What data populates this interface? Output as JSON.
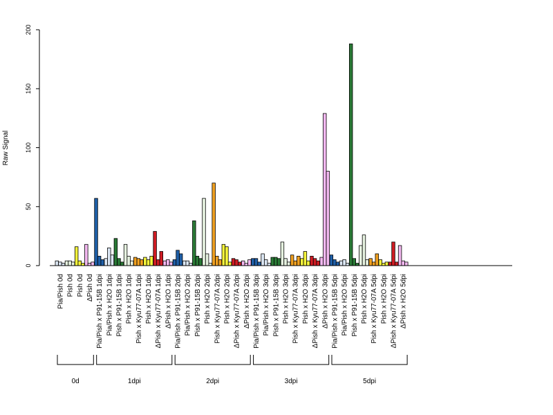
{
  "chart_data": {
    "type": "bar",
    "ylabel": "Raw Signal",
    "ylim": [
      0,
      200
    ],
    "yticks": [
      0,
      50,
      100,
      150,
      200
    ],
    "bars_per_group": 3,
    "categories": [
      {
        "label": "Pia/Pish 0d",
        "color": "#dbe6f3",
        "values": [
          4,
          3,
          2
        ]
      },
      {
        "label": "Pish 0d",
        "color": "#e6f2e0",
        "values": [
          4,
          4,
          3
        ]
      },
      {
        "label": "Pish 0d",
        "color": "#f5f53c",
        "values": [
          16,
          4,
          2
        ]
      },
      {
        "label": "ΔPish 0d",
        "color": "#f3b8f0",
        "values": [
          18,
          2,
          3
        ]
      },
      {
        "label": "Pia/Pish x P91-15B 1dpi",
        "color": "#1f5fa8",
        "values": [
          57,
          8,
          5
        ]
      },
      {
        "label": "Pia/Pish x H2O 1dpi",
        "color": "#dbe6f3",
        "values": [
          6,
          15,
          9
        ]
      },
      {
        "label": "Pish x P91-15B 1dpi",
        "color": "#2a7a36",
        "values": [
          23,
          6,
          3
        ]
      },
      {
        "label": "Pish x H2O 1dpi",
        "color": "#e6f2e0",
        "values": [
          18,
          8,
          4
        ]
      },
      {
        "label": "Pish x Kyu77-07A 1dpi",
        "color": "#f0a020",
        "values": [
          7,
          6,
          5
        ]
      },
      {
        "label": "Pish x H2O 1dpi",
        "color": "#f5f53c",
        "values": [
          7,
          5,
          8
        ]
      },
      {
        "label": "ΔPish x Kyu77-07A 1dpi",
        "color": "#d01c24",
        "values": [
          29,
          5,
          12
        ]
      },
      {
        "label": "ΔPish x H2O 1dpi",
        "color": "#f3b8f0",
        "values": [
          4,
          5,
          3
        ]
      },
      {
        "label": "Pia/Pish x P91-15B 2dpi",
        "color": "#1f5fa8",
        "values": [
          5,
          13,
          10
        ]
      },
      {
        "label": "Pia/Pish x H2O 2dpi",
        "color": "#dbe6f3",
        "values": [
          4,
          4,
          2
        ]
      },
      {
        "label": "Pish x P91-15B 2dpi",
        "color": "#2a7a36",
        "values": [
          38,
          8,
          6
        ]
      },
      {
        "label": "Pish x H2O 2dpi",
        "color": "#e6f2e0",
        "values": [
          57,
          10,
          2
        ]
      },
      {
        "label": "Pish x Kyu77-07A 2dpi",
        "color": "#f0a020",
        "values": [
          70,
          8,
          5
        ]
      },
      {
        "label": "Pish x H2O 2dpi",
        "color": "#f5f53c",
        "values": [
          18,
          16,
          3
        ]
      },
      {
        "label": "ΔPish x Kyu77-07A 2dpi",
        "color": "#d01c24",
        "values": [
          6,
          5,
          3
        ]
      },
      {
        "label": "ΔPish x H2O 2dpi",
        "color": "#f3b8f0",
        "values": [
          4,
          2,
          5
        ]
      },
      {
        "label": "Pia/Pish x P91-15B 3dpi",
        "color": "#1f5fa8",
        "values": [
          6,
          6,
          3
        ]
      },
      {
        "label": "Pia/Pish x H2O 3dpi",
        "color": "#dbe6f3",
        "values": [
          10,
          5,
          2
        ]
      },
      {
        "label": "Pish x P91-15B 3dpi",
        "color": "#2a7a36",
        "values": [
          7,
          7,
          6
        ]
      },
      {
        "label": "Pish x H2O 3dpi",
        "color": "#e6f2e0",
        "values": [
          20,
          6,
          3
        ]
      },
      {
        "label": "Pish x Kyu77-07A 3dpi",
        "color": "#f0a020",
        "values": [
          9,
          4,
          8
        ]
      },
      {
        "label": "Pish x H2O 3dpi",
        "color": "#f5f53c",
        "values": [
          6,
          12,
          4
        ]
      },
      {
        "label": "ΔPish x Kyu77-07A 3dpi",
        "color": "#d01c24",
        "values": [
          8,
          6,
          4
        ]
      },
      {
        "label": "ΔPish x H2O 3dpi",
        "color": "#f3b8f0",
        "values": [
          7,
          129,
          80
        ]
      },
      {
        "label": "Pia/Pish x P91-15B 5dpi",
        "color": "#1f5fa8",
        "values": [
          9,
          5,
          3
        ]
      },
      {
        "label": "Pia/Pish x H2O 5dpi",
        "color": "#dbe6f3",
        "values": [
          4,
          5,
          2
        ]
      },
      {
        "label": "Pish x P91-15B 5dpi",
        "color": "#2a7a36",
        "values": [
          188,
          6,
          2
        ]
      },
      {
        "label": "Pish x H2O 5dpi",
        "color": "#e6f2e0",
        "values": [
          17,
          26,
          5
        ]
      },
      {
        "label": "Pish x Kyu77-07A 5dpi",
        "color": "#f0a020",
        "values": [
          6,
          3,
          10
        ]
      },
      {
        "label": "Pish x H2O 5dpi",
        "color": "#f5f53c",
        "values": [
          5,
          2,
          3
        ]
      },
      {
        "label": "ΔPish x Kyu77-07A 5dpi",
        "color": "#d01c24",
        "values": [
          3,
          20,
          3
        ]
      },
      {
        "label": "ΔPish x H2O 5dpi",
        "color": "#f3b8f0",
        "values": [
          17,
          4,
          3
        ]
      }
    ],
    "groups": [
      {
        "label": "0d",
        "start": 0,
        "end": 3
      },
      {
        "label": "1dpi",
        "start": 4,
        "end": 11
      },
      {
        "label": "2dpi",
        "start": 12,
        "end": 19
      },
      {
        "label": "3dpi",
        "start": 20,
        "end": 27
      },
      {
        "label": "5dpi",
        "start": 28,
        "end": 35
      }
    ]
  }
}
